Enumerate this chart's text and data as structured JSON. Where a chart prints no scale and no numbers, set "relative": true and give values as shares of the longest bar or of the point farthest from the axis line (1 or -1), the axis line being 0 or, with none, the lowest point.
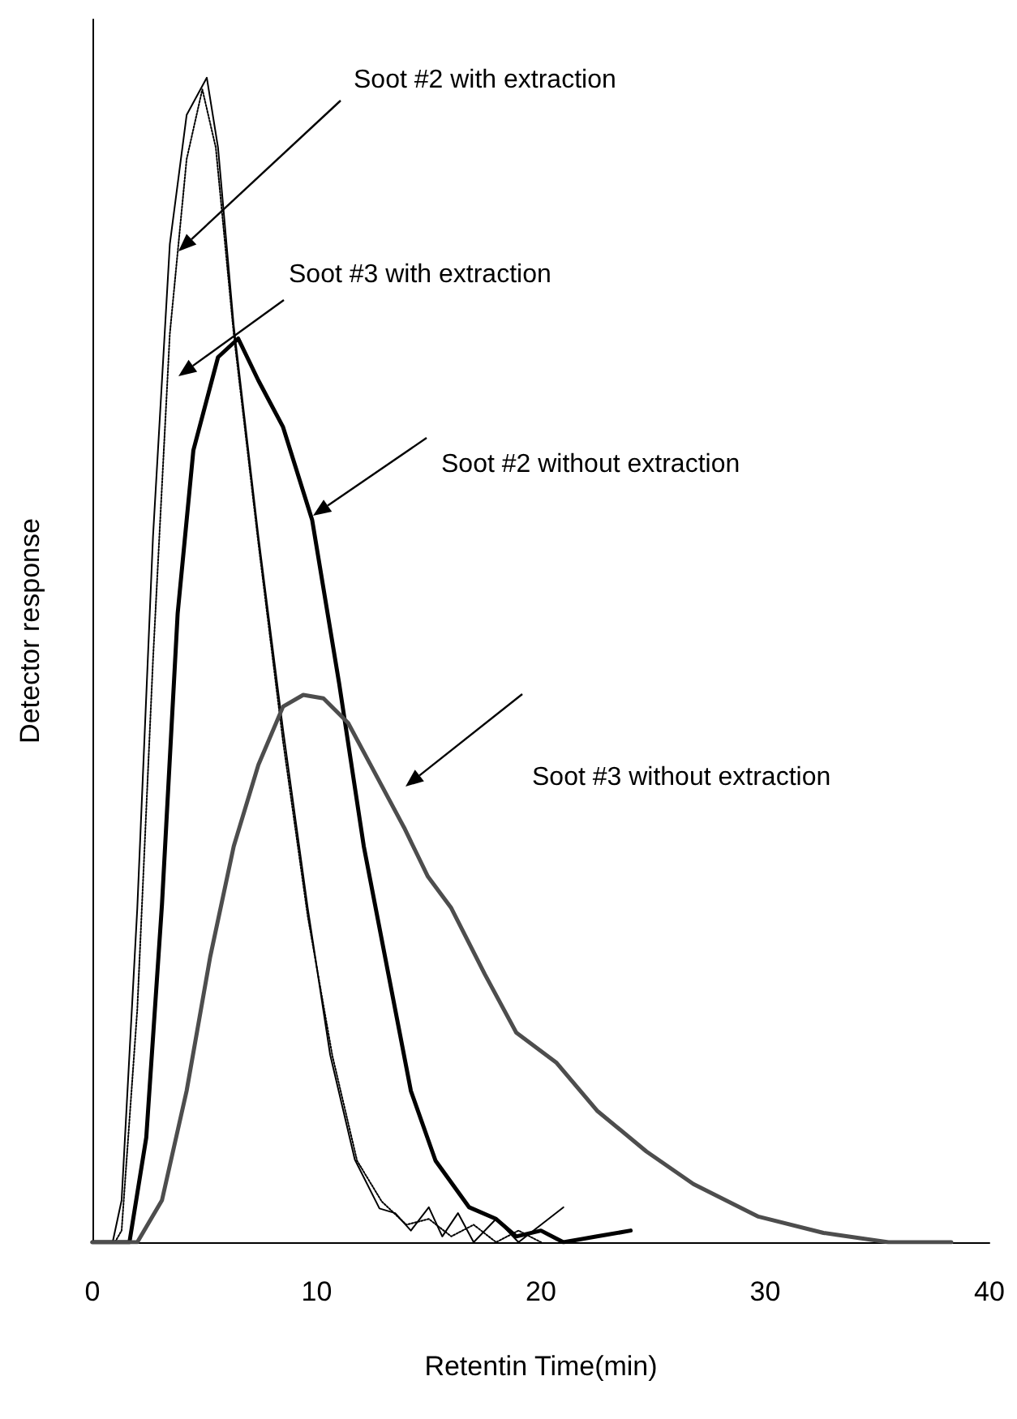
{
  "chart_data": {
    "type": "line",
    "xlabel": "Retentin Time(min)",
    "ylabel": "Detector response",
    "relative": true,
    "xlim": [
      0,
      40
    ],
    "xticks": [
      0,
      10,
      20,
      30,
      40
    ],
    "tick_labels": "x",
    "grid": false,
    "marker": "none",
    "series": [
      {
        "color": "#000000",
        "line_style": "solid",
        "x": [
          0,
          0.9,
          1.3,
          2.0,
          2.7,
          3.45,
          4.2,
          5.1,
          5.6,
          6.3,
          7.4,
          8.5,
          9.6,
          10.6,
          11.7,
          12.8,
          13.5,
          14.2,
          15.0,
          15.6,
          16.3,
          17.0,
          18.0,
          19.0,
          20.0,
          21.0
        ],
        "values": [
          0,
          0,
          0.036,
          0.287,
          0.606,
          0.857,
          0.968,
          1.0,
          0.94,
          0.787,
          0.606,
          0.44,
          0.287,
          0.161,
          0.071,
          0.029,
          0.025,
          0.01,
          0.03,
          0.005,
          0.025,
          0,
          0.02,
          0,
          0.015,
          0.03
        ]
      },
      {
        "color": "#000000",
        "line_style": "dotted",
        "x": [
          0,
          1.0,
          1.3,
          2.0,
          2.7,
          3.45,
          4.2,
          4.9,
          5.5,
          6.3,
          7.4,
          8.5,
          9.6,
          10.7,
          11.8,
          12.9,
          14.0,
          15.0,
          16.0,
          17.0,
          18.0,
          19.0,
          20.0
        ],
        "values": [
          0,
          0,
          0.01,
          0.2,
          0.5,
          0.78,
          0.93,
          0.99,
          0.94,
          0.78,
          0.6,
          0.43,
          0.28,
          0.16,
          0.07,
          0.035,
          0.015,
          0.02,
          0.005,
          0.015,
          0,
          0.01,
          0
        ]
      },
      {
        "color": "#000000",
        "line_style": "solid",
        "x": [
          0,
          1.65,
          2.4,
          3.1,
          3.8,
          4.5,
          5.6,
          6.5,
          7.4,
          8.5,
          9.8,
          11.0,
          12.1,
          13.2,
          14.2,
          15.3,
          16.8,
          18.0,
          18.9,
          20.0,
          21.0,
          22.5,
          24.0
        ],
        "values": [
          0,
          0,
          0.09,
          0.29,
          0.54,
          0.68,
          0.76,
          0.776,
          0.74,
          0.7,
          0.62,
          0.48,
          0.34,
          0.23,
          0.13,
          0.07,
          0.03,
          0.02,
          0.005,
          0.01,
          0,
          0.005,
          0.01
        ]
      },
      {
        "color": "#4d4d4d",
        "line_style": "solid",
        "x": [
          0,
          2.0,
          3.1,
          4.2,
          5.25,
          6.3,
          7.4,
          8.5,
          9.4,
          10.3,
          11.4,
          12.4,
          13.9,
          14.96,
          16.0,
          17.5,
          18.9,
          20.7,
          22.5,
          24.7,
          26.8,
          29.7,
          32.6,
          35.5,
          38.3
        ],
        "values": [
          0,
          0,
          0.036,
          0.13,
          0.245,
          0.34,
          0.41,
          0.46,
          0.47,
          0.467,
          0.446,
          0.41,
          0.356,
          0.314,
          0.287,
          0.23,
          0.18,
          0.154,
          0.113,
          0.078,
          0.05,
          0.022,
          0.008,
          0,
          0
        ]
      }
    ],
    "annotations": [
      "Soot #2 with extraction",
      "Soot #3 with extraction",
      "Soot #2 without extraction",
      "Soot #3 without extraction"
    ]
  }
}
